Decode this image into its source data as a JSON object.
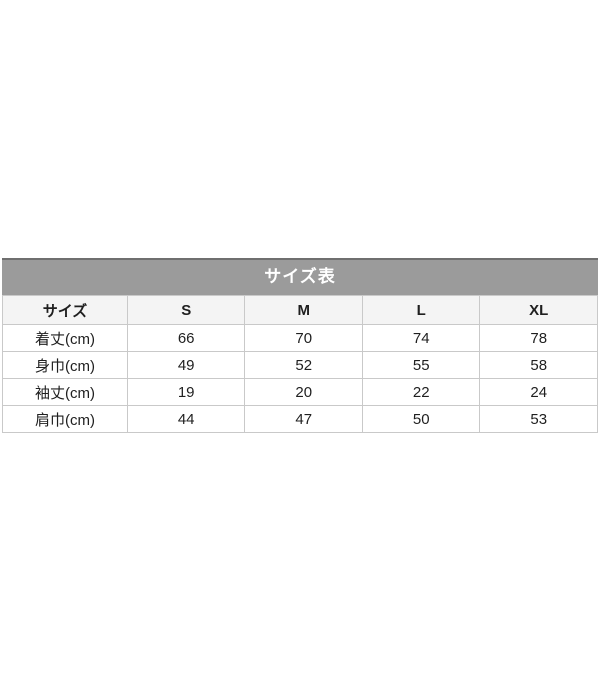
{
  "chart_data": {
    "type": "table",
    "title": "サイズ表",
    "columns": [
      "サイズ",
      "S",
      "M",
      "L",
      "XL"
    ],
    "rows": [
      {
        "label": "着丈(cm)",
        "values": [
          66,
          70,
          74,
          78
        ]
      },
      {
        "label": "身巾(cm)",
        "values": [
          49,
          52,
          55,
          58
        ]
      },
      {
        "label": "袖丈(cm)",
        "values": [
          19,
          20,
          22,
          24
        ]
      },
      {
        "label": "肩巾(cm)",
        "values": [
          44,
          47,
          50,
          53
        ]
      }
    ]
  },
  "colors": {
    "title_bar_bg": "#9b9b9b",
    "title_bar_top_edge": "#6f6f6f",
    "title_text": "#ffffff",
    "header_row_bg": "#f4f4f4",
    "row_bg": "#ffffff",
    "border": "#c9c9c9",
    "cell_text": "#1f1f1f",
    "page_bg": "#ffffff"
  }
}
